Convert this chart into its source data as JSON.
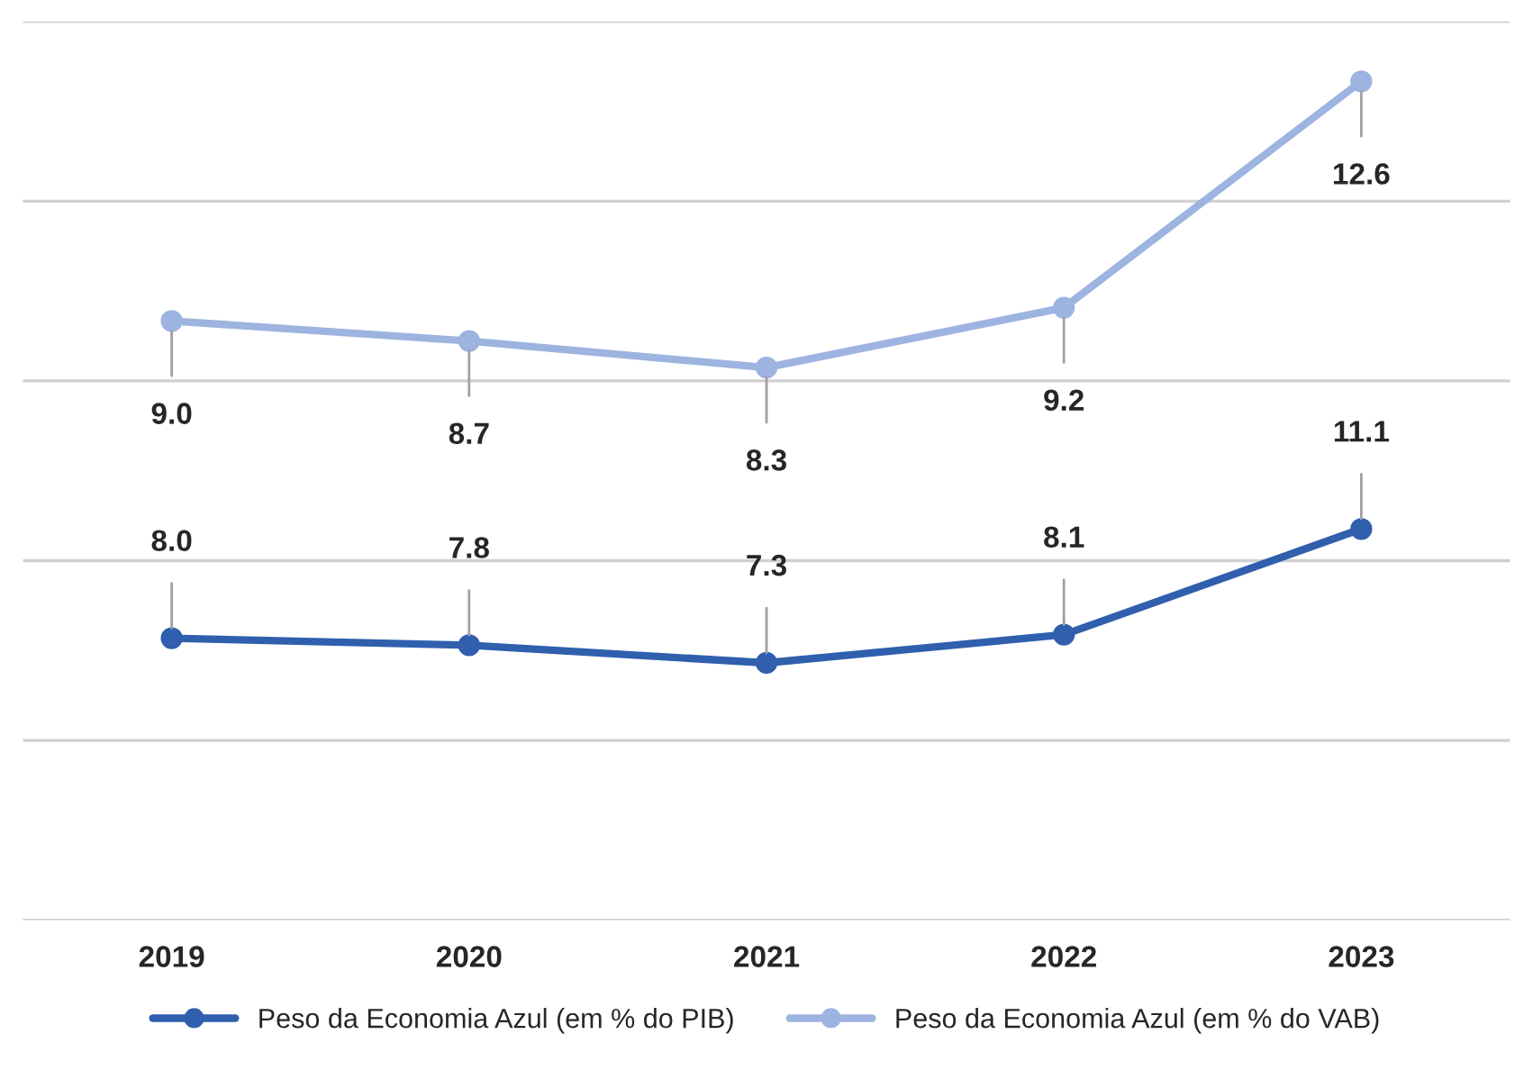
{
  "chart_data": {
    "type": "line",
    "categories": [
      "2019",
      "2020",
      "2021",
      "2022",
      "2023"
    ],
    "series": [
      {
        "name": "Peso da Economia Azul (em % do PIB)",
        "color": "#2f5fad",
        "values": [
          8.0,
          7.8,
          7.3,
          8.1,
          11.1
        ],
        "value_labels": [
          "8.0",
          "7.8",
          "7.3",
          "8.1",
          "11.1"
        ],
        "axis": "y2"
      },
      {
        "name": "Peso da Economia Azul (em % do VAB)",
        "color": "#9db3e0",
        "values": [
          9.0,
          8.7,
          8.3,
          9.2,
          12.6
        ],
        "value_labels": [
          "9.0",
          "8.7",
          "8.3",
          "9.2",
          "12.6"
        ]
      }
    ],
    "ylim": [
      0,
      13.5
    ],
    "yticks": [
      {
        "value": 0,
        "label": null
      },
      {
        "value": 2.7,
        "label": null
      },
      {
        "value": 5.4,
        "label": null
      },
      {
        "value": 8.1,
        "label": null
      },
      {
        "value": 10.8,
        "label": null
      },
      {
        "value": 13.5,
        "label": null
      }
    ],
    "y2lim": [
      0,
      25.5
    ],
    "tick_labels": "x",
    "grid": "y",
    "legend": "bottom",
    "marker": "circle",
    "line_style": "solid"
  }
}
